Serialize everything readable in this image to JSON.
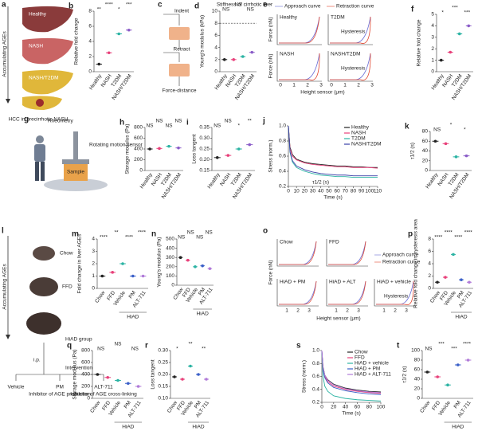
{
  "diagrams": {
    "a": {
      "panel": "a",
      "labels": [
        "Healthy",
        "NASH",
        "NASH/T2DM"
      ],
      "side": "Accumulating AGEs",
      "caption": "HCC in precirrhotic NASH"
    },
    "c": {
      "panel": "c",
      "steps": [
        "Indent",
        "Retract",
        "Force-distance"
      ]
    },
    "e": {
      "panel": "e",
      "legend": [
        "Approach curve",
        "Retraction curve"
      ],
      "panels": [
        "Healthy",
        "T2DM",
        "NASH",
        "NASH/T2DM"
      ],
      "note": "Hysteresis",
      "ylabel": "Force (nN)",
      "xlabel": "Height sensor (μm)",
      "ticks": [
        "0",
        "1",
        "2",
        "3"
      ]
    },
    "g": {
      "panel": "g",
      "title": "Rheometry",
      "motor": "Rotating motion sensor",
      "sample": "Sample"
    },
    "l": {
      "panel": "l",
      "side": "Accumulating AGEs",
      "groups": [
        "Chow",
        "FFD",
        "HiAD group"
      ],
      "route": "i.p.",
      "intervention": "Intervention",
      "arms": [
        {
          "name": "Vehicle"
        },
        {
          "name": "PM",
          "note": "Inhibitor of AGE production"
        },
        {
          "name": "ALT-711",
          "note": "Inhibitor of AGE cross-linking"
        }
      ]
    },
    "o": {
      "panel": "o",
      "panels": [
        "Chow",
        "FFD",
        "HiAD + PM",
        "HiAD + ALT",
        "HiAD + vehicle"
      ],
      "note": "Hysteresis",
      "legend": [
        "Approach curve",
        "Retraction curve"
      ],
      "ylabel": "Force (nN)",
      "xlabel": "Height sensor (μm)",
      "ticks": [
        "1",
        "2",
        "3"
      ]
    }
  },
  "chart_data": [
    {
      "type": "dot",
      "panel": "b",
      "ylabel": "Relative fold change",
      "categories": [
        "Healthy",
        "NASH",
        "T2DM",
        "NASH/T2DM"
      ],
      "values": [
        1,
        2.5,
        5,
        5.5
      ],
      "colors": [
        "#222222",
        "#e8407a",
        "#2bb3a3",
        "#8a5cc8"
      ],
      "ylim": [
        0,
        8
      ],
      "yticks": [
        0,
        2,
        4,
        6,
        8
      ],
      "annotations": [
        "**",
        "****",
        "*",
        "***"
      ]
    },
    {
      "type": "dot",
      "panel": "d",
      "ylabel": "Young's modulus (kPa)",
      "categories": [
        "Healthy",
        "NASH",
        "T2DM",
        "NASH/T2DM"
      ],
      "values": [
        2,
        2,
        2.5,
        3.2
      ],
      "colors": [
        "#222222",
        "#e8407a",
        "#2bb3a3",
        "#8a5cc8"
      ],
      "ylim": [
        0,
        10
      ],
      "yticks": [
        0,
        2,
        4,
        6,
        8,
        10
      ],
      "reference": 8,
      "reference_label": "Stiffness of cirrhotic liver",
      "annotations": [
        "NS",
        "NS",
        "NS"
      ]
    },
    {
      "type": "dot",
      "panel": "f",
      "ylabel": "Relative fold change",
      "categories": [
        "Healthy",
        "NASH",
        "T2DM",
        "NASH/T2DM"
      ],
      "values": [
        1,
        1.7,
        3.3,
        4
      ],
      "colors": [
        "#222222",
        "#e8407a",
        "#2bb3a3",
        "#8a5cc8"
      ],
      "ylim": [
        0,
        5
      ],
      "yticks": [
        0,
        1,
        2,
        3,
        4,
        5
      ],
      "annotations": [
        "*",
        "***",
        "***"
      ]
    },
    {
      "type": "dot",
      "panel": "h",
      "ylabel": "Storage modulus (Pa)",
      "categories": [
        "Healthy",
        "NASH",
        "T2DM",
        "NASH/T2DM"
      ],
      "values": [
        400,
        410,
        450,
        420
      ],
      "colors": [
        "#222222",
        "#e8407a",
        "#2bb3a3",
        "#8a5cc8"
      ],
      "ylim": [
        0,
        800
      ],
      "yticks": [
        0,
        200,
        400,
        600,
        800
      ],
      "annotations": [
        "NS",
        "NS",
        "NS",
        "NS"
      ]
    },
    {
      "type": "dot",
      "panel": "i",
      "ylabel": "Loss tangent",
      "categories": [
        "Healthy",
        "NASH",
        "T2DM",
        "NASH/T2DM"
      ],
      "values": [
        0.21,
        0.22,
        0.25,
        0.27
      ],
      "colors": [
        "#222222",
        "#e8407a",
        "#2bb3a3",
        "#8a5cc8"
      ],
      "ylim": [
        0.15,
        0.35
      ],
      "yticks": [
        {
          "value": 0.15,
          "label": "0.15"
        },
        {
          "value": 0.2,
          "label": "0.20"
        },
        {
          "value": 0.25,
          "label": "0.25"
        },
        {
          "value": 0.3,
          "label": "0.30"
        },
        {
          "value": 0.35,
          "label": "0.35"
        }
      ],
      "annotations": [
        "NS",
        "NS",
        "*",
        "**"
      ]
    },
    {
      "type": "line",
      "panel": "j",
      "ylabel": "Stress (norm.)",
      "xlabel": "Time (s)",
      "annotation": "τ1/2 (s)",
      "x": [
        0,
        2,
        5,
        10,
        20,
        30,
        40,
        50,
        60,
        70,
        80,
        90,
        100,
        110
      ],
      "series": [
        {
          "name": "Healthy",
          "color": "#222222",
          "values": [
            1,
            0.72,
            0.62,
            0.56,
            0.52,
            0.5,
            0.49,
            0.48,
            0.47,
            0.47,
            0.46,
            0.46,
            0.45,
            0.45
          ]
        },
        {
          "name": "NASH",
          "color": "#e8407a",
          "values": [
            1,
            0.7,
            0.6,
            0.55,
            0.51,
            0.49,
            0.48,
            0.47,
            0.46,
            0.46,
            0.45,
            0.45,
            0.45,
            0.44
          ]
        },
        {
          "name": "T2DM",
          "color": "#2bb3a3",
          "values": [
            1,
            0.65,
            0.52,
            0.45,
            0.4,
            0.37,
            0.35,
            0.34,
            0.33,
            0.33,
            0.32,
            0.32,
            0.32,
            0.32
          ]
        },
        {
          "name": "NASH/T2DM",
          "color": "#3a3fa8",
          "values": [
            1,
            0.66,
            0.54,
            0.47,
            0.42,
            0.39,
            0.37,
            0.36,
            0.35,
            0.35,
            0.34,
            0.34,
            0.34,
            0.34
          ]
        }
      ],
      "xlim": [
        0,
        110
      ],
      "xticks": [
        0,
        10,
        20,
        30,
        40,
        50,
        60,
        70,
        80,
        90,
        100,
        110
      ],
      "ylim": [
        0.2,
        1.0
      ],
      "yticks": [
        0.2,
        0.4,
        0.6,
        0.8,
        {
          "value": 1.0,
          "label": "1.0"
        }
      ]
    },
    {
      "type": "dot",
      "panel": "k",
      "ylabel": "τ1/2 (s)",
      "categories": [
        "Healthy",
        "NASH",
        "T2DM",
        "NASH/T2DM"
      ],
      "values": [
        60,
        55,
        28,
        30
      ],
      "colors": [
        "#222222",
        "#e8407a",
        "#2bb3a3",
        "#8a5cc8"
      ],
      "ylim": [
        0,
        80
      ],
      "yticks": [
        0,
        20,
        40,
        60,
        80
      ],
      "annotations": [
        "NS",
        "*",
        "*"
      ]
    },
    {
      "type": "dot",
      "panel": "m",
      "ylabel": "Fold change in liver AGEs",
      "categories": [
        "Chow",
        "FFD",
        "Vehicle",
        "PM",
        "ALT-711"
      ],
      "group": "HiAD",
      "values": [
        1,
        1.3,
        2,
        1,
        1
      ],
      "colors": [
        "#222222",
        "#e8407a",
        "#2bb3a3",
        "#3a5fc8",
        "#b07ad8"
      ],
      "ylim": [
        0,
        4
      ],
      "yticks": [
        0,
        1,
        2,
        3,
        4
      ],
      "annotations": [
        "****",
        "**",
        "****",
        "****"
      ]
    },
    {
      "type": "dot",
      "panel": "n",
      "ylabel": "Young's modulus (Pa)",
      "categories": [
        "Chow",
        "FFD",
        "Vehicle",
        "PM",
        "ALT-711"
      ],
      "group": "HiAD",
      "values": [
        300,
        270,
        200,
        210,
        180
      ],
      "colors": [
        "#222222",
        "#e8407a",
        "#2bb3a3",
        "#3a5fc8",
        "#b07ad8"
      ],
      "ylim": [
        0,
        500
      ],
      "yticks": [
        0,
        100,
        200,
        300,
        400,
        500
      ],
      "annotations": [
        "NS",
        "NS",
        "NS",
        "NS"
      ]
    },
    {
      "type": "dot",
      "panel": "p",
      "ylabel": "Relative fold change in hysteresis area",
      "categories": [
        "Chow",
        "FFD",
        "Vehicle",
        "PM",
        "ALT-711"
      ],
      "group": "HiAD",
      "values": [
        1,
        1.8,
        5.5,
        1.4,
        1
      ],
      "colors": [
        "#222222",
        "#e8407a",
        "#2bb3a3",
        "#3a5fc8",
        "#b07ad8"
      ],
      "ylim": [
        0,
        8
      ],
      "yticks": [
        0,
        2,
        4,
        6,
        8
      ],
      "annotations": [
        "****",
        "****",
        "****",
        "****"
      ]
    },
    {
      "type": "dot",
      "panel": "q",
      "ylabel": "Storage modulus (Pa)",
      "categories": [
        "Chow",
        "FFD",
        "Vehicle",
        "PM",
        "ALT-711"
      ],
      "group": "HiAD",
      "values": [
        400,
        350,
        300,
        250,
        200
      ],
      "colors": [
        "#222222",
        "#e8407a",
        "#2bb3a3",
        "#3a5fc8",
        "#b07ad8"
      ],
      "ylim": [
        0,
        800
      ],
      "yticks": [
        0,
        200,
        400,
        600,
        800
      ],
      "annotations": [
        "NS",
        "NS",
        "NS"
      ]
    },
    {
      "type": "dot",
      "panel": "r",
      "ylabel": "Loss tangent",
      "categories": [
        "Chow",
        "FFD",
        "Vehicle",
        "PM",
        "ALT-711"
      ],
      "group": "HiAD",
      "values": [
        0.19,
        0.18,
        0.235,
        0.2,
        0.18
      ],
      "colors": [
        "#222222",
        "#e8407a",
        "#2bb3a3",
        "#3a5fc8",
        "#b07ad8"
      ],
      "ylim": [
        0.1,
        0.3
      ],
      "yticks": [
        {
          "value": 0.1,
          "label": "0.10"
        },
        0.15,
        {
          "value": 0.2,
          "label": "0.20"
        },
        0.25,
        {
          "value": 0.3,
          "label": "0.30"
        }
      ],
      "annotations": [
        "*",
        "**",
        "**"
      ]
    },
    {
      "type": "line",
      "panel": "s",
      "ylabel": "Stress (norm.)",
      "xlabel": "Time (s)",
      "x": [
        0,
        2,
        5,
        10,
        20,
        40,
        60,
        80,
        100
      ],
      "series": [
        {
          "name": "Chow",
          "color": "#222222",
          "values": [
            1,
            0.75,
            0.62,
            0.55,
            0.48,
            0.42,
            0.39,
            0.37,
            0.36
          ]
        },
        {
          "name": "FFD",
          "color": "#e8407a",
          "values": [
            1,
            0.72,
            0.6,
            0.52,
            0.45,
            0.4,
            0.37,
            0.35,
            0.34
          ]
        },
        {
          "name": "HiAD + vehicle",
          "color": "#2bb3a3",
          "values": [
            1,
            0.6,
            0.45,
            0.37,
            0.3,
            0.26,
            0.24,
            0.23,
            0.22
          ]
        },
        {
          "name": "HiAD + PM",
          "color": "#3a5fc8",
          "values": [
            1,
            0.7,
            0.58,
            0.5,
            0.43,
            0.38,
            0.35,
            0.33,
            0.32
          ]
        },
        {
          "name": "HiAD + ALT-711",
          "color": "#b07ad8",
          "values": [
            1,
            0.74,
            0.62,
            0.54,
            0.47,
            0.41,
            0.38,
            0.36,
            0.35
          ]
        }
      ],
      "xlim": [
        0,
        100
      ],
      "xticks": [
        0,
        20,
        40,
        60,
        80,
        100
      ],
      "ylim": [
        0.2,
        1.0
      ],
      "yticks": [
        0.2,
        0.4,
        0.6,
        0.8,
        {
          "value": 1.0,
          "label": "1.0"
        }
      ]
    },
    {
      "type": "dot",
      "panel": "t",
      "ylabel": "τ1/2 (s)",
      "categories": [
        "Chow",
        "FFD",
        "Vehicle",
        "PM",
        "ALT-711"
      ],
      "group": "HiAD",
      "values": [
        55,
        45,
        28,
        70,
        80
      ],
      "colors": [
        "#222222",
        "#e8407a",
        "#2bb3a3",
        "#3a5fc8",
        "#b07ad8"
      ],
      "ylim": [
        0,
        100
      ],
      "yticks": [
        0,
        20,
        40,
        60,
        80,
        100
      ],
      "annotations": [
        "NS",
        "***",
        "***",
        "****"
      ]
    }
  ]
}
